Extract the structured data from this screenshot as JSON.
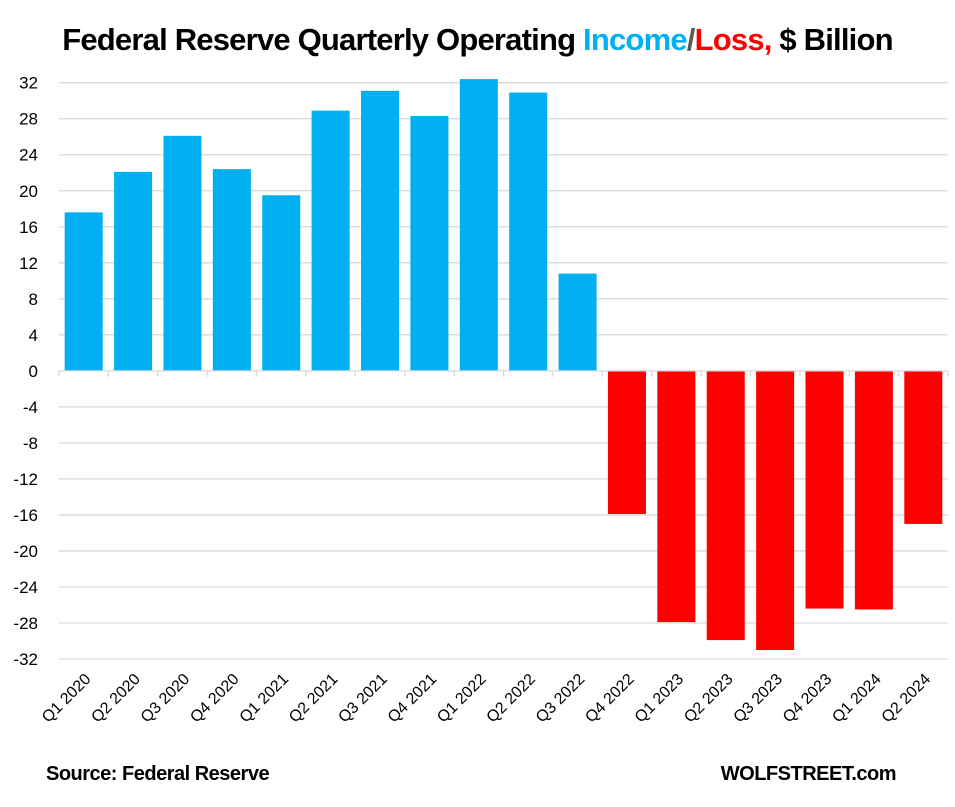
{
  "chart_data": {
    "type": "bar",
    "title": "Federal Reserve Quarterly Operating Income/Loss, $ Billion",
    "title_parts": [
      {
        "text": "Federal Reserve Quarterly Operating ",
        "color": "#000000"
      },
      {
        "text": "Income",
        "color": "#00B0F0"
      },
      {
        "text": "/",
        "color": "#595959"
      },
      {
        "text": "Loss,",
        "color": "#FF0000"
      },
      {
        "text": " $ Billion",
        "color": "#000000"
      }
    ],
    "xlabel": "",
    "ylabel": "",
    "ylim": [
      -32,
      32
    ],
    "yticks": [
      32,
      28,
      24,
      20,
      16,
      12,
      8,
      4,
      0,
      -4,
      -8,
      -12,
      -16,
      -20,
      -24,
      -28,
      -32
    ],
    "grid": true,
    "categories": [
      "Q1 2020",
      "Q2 2020",
      "Q3 2020",
      "Q4 2020",
      "Q1 2021",
      "Q2 2021",
      "Q3 2021",
      "Q4 2021",
      "Q1 2022",
      "Q2 2022",
      "Q3 2022",
      "Q4 2022",
      "Q1 2023",
      "Q2 2023",
      "Q3 2023",
      "Q4 2023",
      "Q1 2024",
      "Q2 2024"
    ],
    "values": [
      17.6,
      22.1,
      26.1,
      22.4,
      19.5,
      28.9,
      31.1,
      28.3,
      32.4,
      30.9,
      10.8,
      -15.9,
      -27.9,
      -29.9,
      -31.0,
      -26.4,
      -26.5,
      -17.0
    ],
    "colors": {
      "positive": "#00B0F0",
      "negative": "#FF0000",
      "grid": "#D9D9D9"
    }
  },
  "footer": {
    "source": "Source: Federal Reserve",
    "brand": "WOLFSTREET.com"
  }
}
